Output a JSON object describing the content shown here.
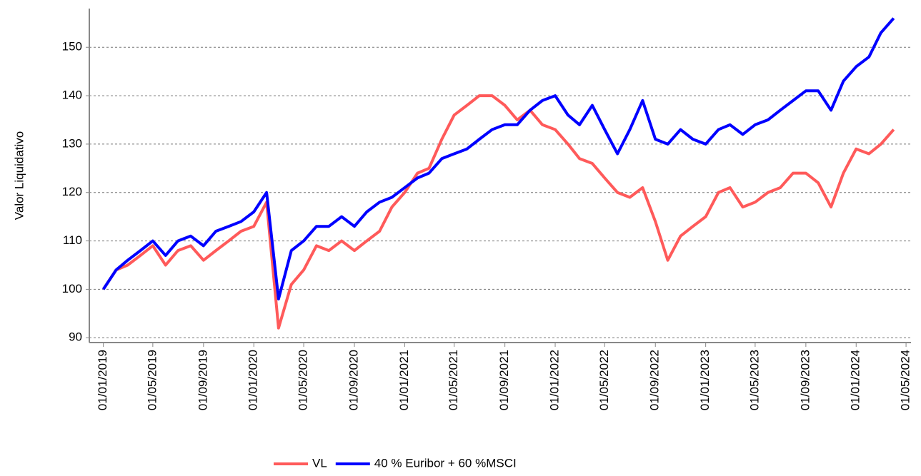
{
  "chart_data": {
    "type": "line",
    "y_label": "Valor Liquidativo",
    "x": [
      "2019-01-01",
      "2019-02-01",
      "2019-03-01",
      "2019-04-01",
      "2019-05-01",
      "2019-06-01",
      "2019-07-01",
      "2019-08-01",
      "2019-09-01",
      "2019-10-01",
      "2019-11-01",
      "2019-12-01",
      "2020-01-01",
      "2020-02-01",
      "2020-03-01",
      "2020-04-01",
      "2020-05-01",
      "2020-06-01",
      "2020-07-01",
      "2020-08-01",
      "2020-09-01",
      "2020-10-01",
      "2020-11-01",
      "2020-12-01",
      "2021-01-01",
      "2021-02-01",
      "2021-03-01",
      "2021-04-01",
      "2021-05-01",
      "2021-06-01",
      "2021-07-01",
      "2021-08-01",
      "2021-09-01",
      "2021-10-01",
      "2021-11-01",
      "2021-12-01",
      "2022-01-01",
      "2022-02-01",
      "2022-03-01",
      "2022-04-01",
      "2022-05-01",
      "2022-06-01",
      "2022-07-01",
      "2022-08-01",
      "2022-09-01",
      "2022-10-01",
      "2022-11-01",
      "2022-12-01",
      "2023-01-01",
      "2023-02-01",
      "2023-03-01",
      "2023-04-01",
      "2023-05-01",
      "2023-06-01",
      "2023-07-01",
      "2023-08-01",
      "2023-09-01",
      "2023-10-01",
      "2023-11-01",
      "2023-12-01",
      "2024-01-01",
      "2024-02-01",
      "2024-03-01",
      "2024-04-01"
    ],
    "series": [
      {
        "name": "VL",
        "color": "#ff5a5a",
        "values": [
          100,
          104,
          105,
          107,
          109,
          105,
          108,
          109,
          106,
          108,
          110,
          112,
          113,
          118,
          92,
          101,
          104,
          109,
          108,
          110,
          108,
          110,
          112,
          117,
          120,
          124,
          125,
          131,
          136,
          138,
          140,
          140,
          138,
          135,
          137,
          134,
          133,
          130,
          127,
          126,
          123,
          120,
          119,
          121,
          114,
          106,
          111,
          113,
          115,
          120,
          121,
          117,
          118,
          120,
          121,
          124,
          124,
          122,
          117,
          124,
          129,
          128,
          130,
          133
        ]
      },
      {
        "name": "40 % Euribor + 60 %MSCI",
        "color": "#0000ff",
        "values": [
          100,
          104,
          106,
          108,
          110,
          107,
          110,
          111,
          109,
          112,
          113,
          114,
          116,
          120,
          98,
          108,
          110,
          113,
          113,
          115,
          113,
          116,
          118,
          119,
          121,
          123,
          124,
          127,
          128,
          129,
          131,
          133,
          134,
          134,
          137,
          139,
          140,
          136,
          134,
          138,
          133,
          128,
          133,
          139,
          131,
          130,
          133,
          131,
          130,
          133,
          134,
          132,
          134,
          135,
          137,
          139,
          141,
          141,
          137,
          143,
          146,
          148,
          153,
          156
        ]
      }
    ],
    "xlim": [
      "2018-11-28",
      "2024-05-13"
    ],
    "xticks": [
      {
        "value": "2019-01-01",
        "label": "01/01/2019"
      },
      {
        "value": "2019-05-01",
        "label": "01/05/2019"
      },
      {
        "value": "2019-09-01",
        "label": "01/09/2019"
      },
      {
        "value": "2020-01-01",
        "label": "01/01/2020"
      },
      {
        "value": "2020-05-01",
        "label": "01/05/2020"
      },
      {
        "value": "2020-09-01",
        "label": "01/09/2020"
      },
      {
        "value": "2021-01-01",
        "label": "01/01/2021"
      },
      {
        "value": "2021-05-01",
        "label": "01/05/2021"
      },
      {
        "value": "2021-09-01",
        "label": "01/09/2021"
      },
      {
        "value": "2022-01-01",
        "label": "01/01/2022"
      },
      {
        "value": "2022-05-01",
        "label": "01/05/2022"
      },
      {
        "value": "2022-09-01",
        "label": "01/09/2022"
      },
      {
        "value": "2023-01-01",
        "label": "01/01/2023"
      },
      {
        "value": "2023-05-01",
        "label": "01/05/2023"
      },
      {
        "value": "2023-09-01",
        "label": "01/09/2023"
      },
      {
        "value": "2024-01-01",
        "label": "01/01/2024"
      },
      {
        "value": "2024-05-01",
        "label": "01/05/2024"
      }
    ],
    "ylim": [
      89,
      158
    ],
    "yticks": [
      90,
      100,
      110,
      120,
      130,
      140,
      150
    ],
    "grid": true,
    "legend": "bottom"
  }
}
